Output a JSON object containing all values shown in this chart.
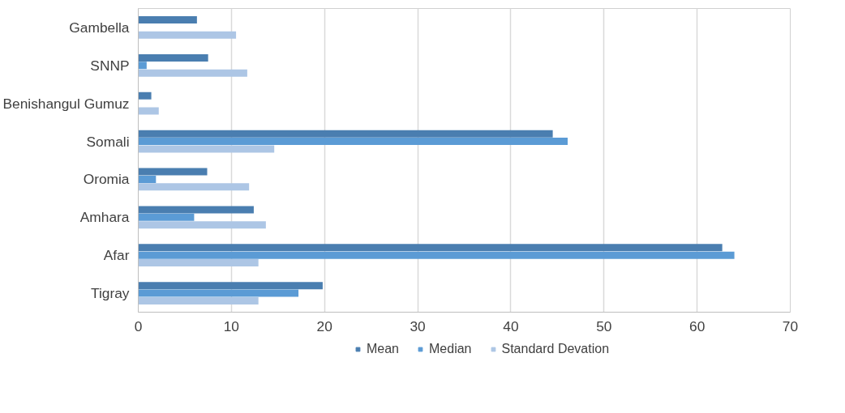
{
  "chart_data": {
    "type": "bar",
    "orientation": "horizontal",
    "categories": [
      "Gambella",
      "SNNP",
      "Benishangul Gumuz",
      "Somali",
      "Oromia",
      "Amhara",
      "Afar",
      "Tigray"
    ],
    "series": [
      {
        "name": "Mean",
        "color": "#4a7eb0",
        "values": [
          6.3,
          7.5,
          1.4,
          44.5,
          7.4,
          12.4,
          62.7,
          19.8
        ]
      },
      {
        "name": "Median",
        "color": "#5b9bd5",
        "values": [
          null,
          0.9,
          null,
          46.1,
          1.9,
          6.0,
          64.0,
          17.2
        ]
      },
      {
        "name": "Standard Devation",
        "color": "#adc6e5",
        "values": [
          10.5,
          11.7,
          2.2,
          14.6,
          11.9,
          13.7,
          12.9,
          12.9
        ]
      }
    ],
    "xlim": [
      0,
      70
    ],
    "xticks": [
      0,
      10,
      20,
      30,
      40,
      50,
      60,
      70
    ],
    "grid": "x",
    "legend": "bottom"
  }
}
